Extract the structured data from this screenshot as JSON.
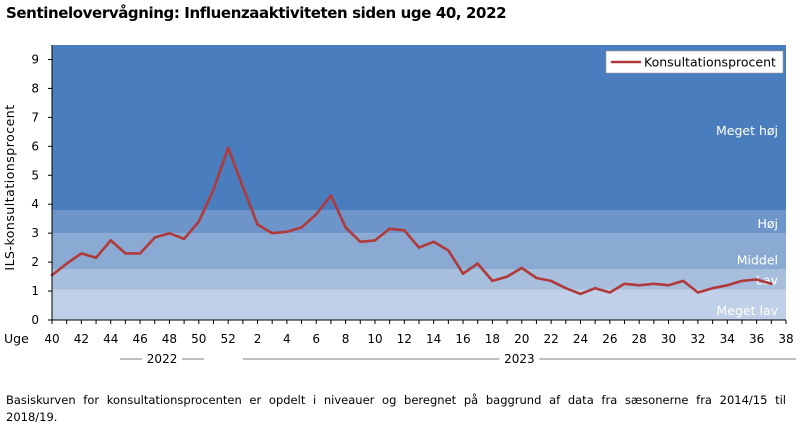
{
  "title": "Sentinelovervågning: Influenzaaktiviteten siden uge 40, 2022",
  "footnote": "Basiskurven for konsultationsprocenten er opdelt i niveauer og beregnet på baggrund af data fra sæsonerne fra 2014/15 til 2018/19.",
  "chart_data": {
    "type": "line",
    "ylabel": "ILS-konsultationsprocent",
    "xlabel": "Uge",
    "ylim": [
      0,
      9.5
    ],
    "yticks": [
      0,
      1,
      2,
      3,
      4,
      5,
      6,
      7,
      8,
      9
    ],
    "grid": false,
    "legend": {
      "position": "top-right",
      "entries": [
        "Konsultationsprocent"
      ]
    },
    "x_tick_labels": [
      "40",
      "42",
      "44",
      "46",
      "48",
      "50",
      "52",
      "2",
      "4",
      "6",
      "8",
      "10",
      "12",
      "14",
      "16",
      "18",
      "20",
      "22",
      "24",
      "26",
      "28",
      "30",
      "32",
      "34",
      "36",
      "38"
    ],
    "years": [
      {
        "label": "2022",
        "from_index": 0,
        "to_index": 12
      },
      {
        "label": "2023",
        "from_index": 13,
        "to_index": 50
      }
    ],
    "weeks": [
      40,
      41,
      42,
      43,
      44,
      45,
      46,
      47,
      48,
      49,
      50,
      51,
      52,
      1,
      2,
      3,
      4,
      5,
      6,
      7,
      8,
      9,
      10,
      11,
      12,
      13,
      14,
      15,
      16,
      17,
      18,
      19,
      20,
      21,
      22,
      23,
      24,
      25,
      26,
      27,
      28,
      29,
      30,
      31,
      32,
      33,
      34,
      35,
      36,
      37
    ],
    "bands": [
      {
        "label": "Meget lav",
        "from": 0,
        "to": 1.05,
        "color": "#c0d0e8"
      },
      {
        "label": "Lav",
        "from": 1.05,
        "to": 1.75,
        "color": "#a8bedd"
      },
      {
        "label": "Middel",
        "from": 1.75,
        "to": 3.0,
        "color": "#8aaad3"
      },
      {
        "label": "Høj",
        "from": 3.0,
        "to": 3.8,
        "color": "#6d95c9"
      },
      {
        "label": "Meget høj",
        "from": 3.8,
        "to": 9.5,
        "color": "#4a7dbd"
      }
    ],
    "series": [
      {
        "name": "Konsultationsprocent",
        "color": "#b03a3a",
        "values": [
          1.55,
          1.95,
          2.3,
          2.15,
          2.75,
          2.3,
          2.3,
          2.85,
          3.0,
          2.8,
          3.4,
          4.5,
          5.95,
          4.6,
          3.3,
          3.0,
          3.05,
          3.2,
          3.65,
          4.3,
          3.2,
          2.7,
          2.75,
          3.15,
          3.1,
          2.5,
          2.7,
          2.4,
          1.6,
          1.95,
          1.35,
          1.5,
          1.8,
          1.45,
          1.35,
          1.1,
          0.9,
          1.1,
          0.95,
          1.25,
          1.2,
          1.25,
          1.2,
          1.35,
          0.95,
          1.1,
          1.2,
          1.35,
          1.4,
          1.25
        ]
      }
    ]
  }
}
